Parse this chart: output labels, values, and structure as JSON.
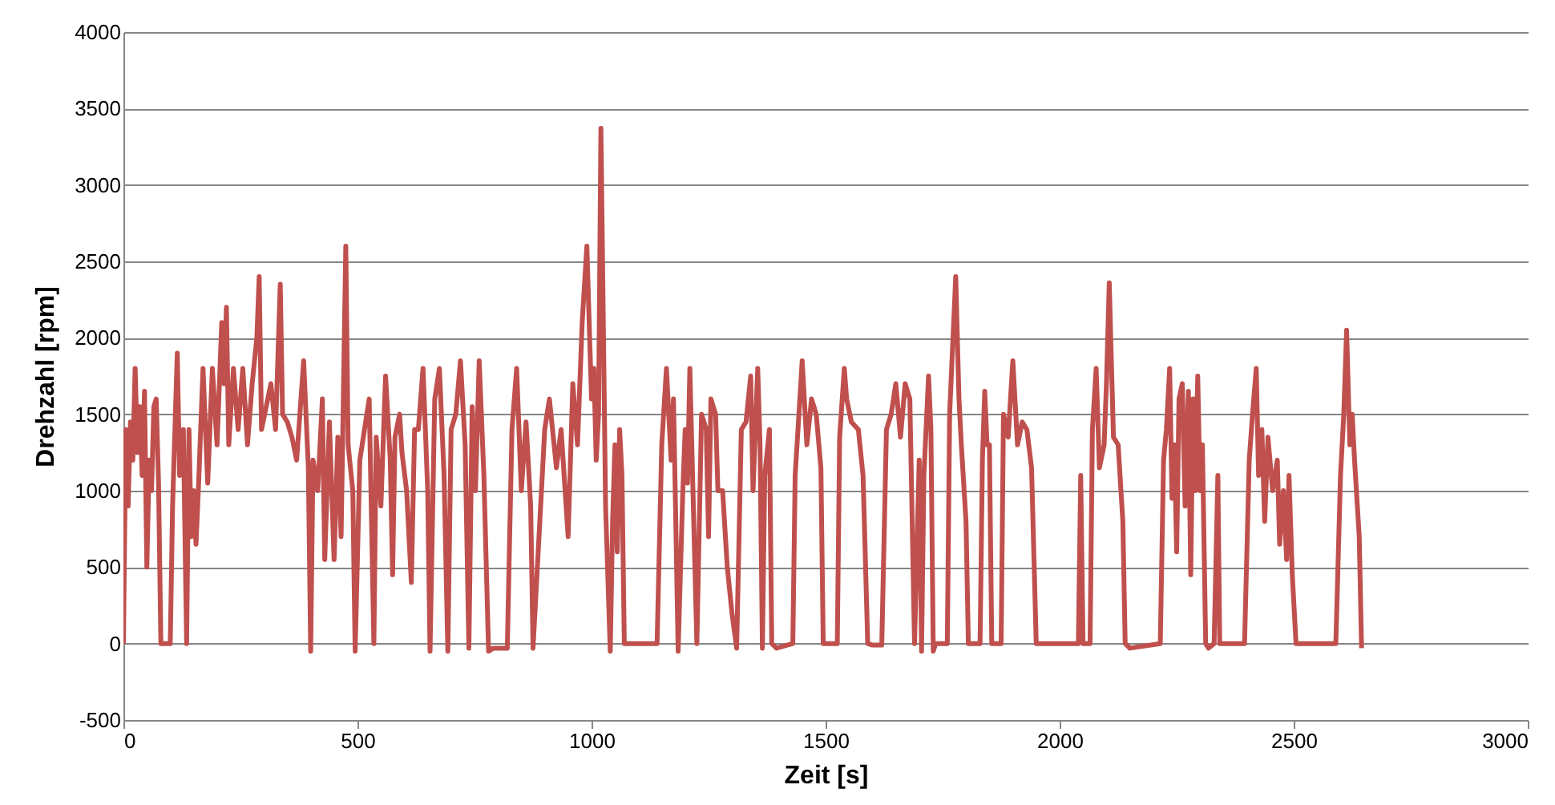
{
  "chart_data": {
    "type": "line",
    "xlabel": "Zeit [s]",
    "ylabel": "Drehzahl [rpm]",
    "xlim": [
      0,
      3000
    ],
    "xticks": [
      0,
      500,
      1000,
      1500,
      2000,
      2500,
      3000
    ],
    "ylim": [
      -500,
      4000
    ],
    "yticks": [
      -500,
      0,
      500,
      1000,
      1500,
      2000,
      2500,
      3000,
      3500,
      4000
    ],
    "grid": "y",
    "marker": "none",
    "line_style": "solid",
    "x": [
      0,
      5,
      10,
      15,
      20,
      25,
      30,
      35,
      40,
      45,
      50,
      55,
      60,
      65,
      70,
      75,
      80,
      100,
      105,
      110,
      115,
      120,
      128,
      135,
      140,
      145,
      150,
      155,
      160,
      170,
      180,
      190,
      200,
      210,
      215,
      220,
      225,
      235,
      245,
      255,
      265,
      275,
      285,
      290,
      295,
      305,
      315,
      325,
      335,
      340,
      350,
      360,
      370,
      385,
      395,
      400,
      405,
      415,
      425,
      430,
      440,
      450,
      458,
      465,
      475,
      480,
      490,
      495,
      505,
      515,
      525,
      535,
      540,
      550,
      560,
      570,
      575,
      580,
      590,
      595,
      605,
      615,
      622,
      630,
      640,
      650,
      655,
      665,
      675,
      685,
      693,
      700,
      710,
      720,
      730,
      738,
      745,
      752,
      760,
      770,
      780,
      790,
      820,
      830,
      840,
      850,
      860,
      870,
      875,
      900,
      910,
      925,
      935,
      950,
      960,
      970,
      980,
      990,
      1000,
      1005,
      1010,
      1015,
      1020,
      1030,
      1040,
      1045,
      1050,
      1055,
      1060,
      1065,
      1070,
      1140,
      1150,
      1160,
      1170,
      1175,
      1180,
      1185,
      1195,
      1200,
      1205,
      1210,
      1220,
      1225,
      1235,
      1245,
      1250,
      1255,
      1265,
      1270,
      1280,
      1290,
      1300,
      1310,
      1320,
      1330,
      1340,
      1345,
      1355,
      1360,
      1365,
      1370,
      1380,
      1385,
      1395,
      1430,
      1435,
      1445,
      1450,
      1460,
      1470,
      1480,
      1490,
      1495,
      1525,
      1530,
      1540,
      1545,
      1555,
      1570,
      1580,
      1590,
      1600,
      1620,
      1630,
      1640,
      1650,
      1660,
      1670,
      1680,
      1690,
      1700,
      1705,
      1710,
      1720,
      1725,
      1730,
      1735,
      1760,
      1765,
      1770,
      1778,
      1785,
      1790,
      1800,
      1805,
      1830,
      1835,
      1840,
      1845,
      1850,
      1855,
      1875,
      1880,
      1890,
      1900,
      1910,
      1920,
      1930,
      1940,
      1950,
      1990,
      2040,
      2045,
      2050,
      2065,
      2070,
      2078,
      2085,
      2095,
      2100,
      2106,
      2110,
      2115,
      2125,
      2135,
      2140,
      2150,
      2215,
      2222,
      2228,
      2235,
      2240,
      2245,
      2250,
      2255,
      2262,
      2268,
      2275,
      2280,
      2285,
      2290,
      2295,
      2300,
      2305,
      2312,
      2318,
      2330,
      2338,
      2342,
      2395,
      2405,
      2412,
      2420,
      2425,
      2432,
      2438,
      2445,
      2455,
      2465,
      2470,
      2478,
      2485,
      2490,
      2497,
      2505,
      2590,
      2600,
      2607,
      2613,
      2620,
      2625,
      2630,
      2640,
      2645
    ],
    "series": [
      {
        "color": "#c0504d",
        "values": [
          0,
          1400,
          900,
          1450,
          1200,
          1800,
          1250,
          1550,
          1100,
          1650,
          500,
          1200,
          1000,
          1550,
          1600,
          1050,
          0,
          0,
          900,
          1400,
          1900,
          1100,
          1400,
          0,
          1400,
          700,
          1000,
          650,
          1000,
          1800,
          1050,
          1800,
          1300,
          2100,
          1700,
          2200,
          1300,
          1800,
          1400,
          1800,
          1300,
          1700,
          2000,
          2400,
          1400,
          1550,
          1700,
          1400,
          2350,
          1500,
          1450,
          1350,
          1200,
          1850,
          1150,
          -50,
          1200,
          1000,
          1600,
          550,
          1450,
          550,
          1350,
          700,
          2600,
          1300,
          1000,
          -50,
          1200,
          1400,
          1600,
          0,
          1350,
          900,
          1750,
          1200,
          450,
          1350,
          1500,
          1250,
          1000,
          400,
          1400,
          1400,
          1800,
          1000,
          -50,
          1600,
          1800,
          1100,
          -50,
          1400,
          1500,
          1850,
          1300,
          -30,
          1550,
          1000,
          1850,
          1100,
          -50,
          -30,
          -30,
          1400,
          1800,
          1000,
          1450,
          900,
          -30,
          1400,
          1600,
          1150,
          1400,
          700,
          1700,
          1300,
          2100,
          2600,
          1600,
          1800,
          1200,
          1500,
          3370,
          900,
          -50,
          800,
          1300,
          600,
          1400,
          1100,
          0,
          0,
          1300,
          1800,
          1200,
          1600,
          800,
          -50,
          1000,
          1400,
          1050,
          1800,
          600,
          0,
          1500,
          1400,
          700,
          1600,
          1500,
          1000,
          1000,
          500,
          200,
          -30,
          1400,
          1450,
          1750,
          1000,
          1800,
          1300,
          -30,
          1100,
          1400,
          0,
          -30,
          0,
          1100,
          1600,
          1850,
          1300,
          1600,
          1500,
          1150,
          0,
          0,
          1350,
          1800,
          1600,
          1450,
          1400,
          1100,
          0,
          -10,
          -10,
          1400,
          1500,
          1700,
          1350,
          1700,
          1600,
          0,
          1200,
          -50,
          1100,
          1750,
          1400,
          -50,
          0,
          0,
          1500,
          1850,
          2400,
          1600,
          1300,
          800,
          0,
          0,
          1200,
          1650,
          1300,
          1300,
          0,
          0,
          1500,
          1350,
          1850,
          1300,
          1450,
          1400,
          1150,
          0,
          0,
          0,
          1100,
          0,
          0,
          1400,
          1800,
          1150,
          1300,
          1700,
          2360,
          1900,
          1350,
          1300,
          800,
          0,
          -30,
          0,
          1200,
          1400,
          1800,
          950,
          1300,
          600,
          1600,
          1700,
          900,
          1650,
          450,
          1600,
          1000,
          1750,
          1000,
          1300,
          0,
          -30,
          0,
          1100,
          0,
          0,
          1200,
          1500,
          1800,
          1100,
          1400,
          800,
          1350,
          1000,
          1200,
          650,
          1000,
          550,
          1100,
          450,
          0,
          0,
          1100,
          1500,
          2050,
          1300,
          1500,
          1200,
          700,
          -30
        ]
      }
    ]
  }
}
